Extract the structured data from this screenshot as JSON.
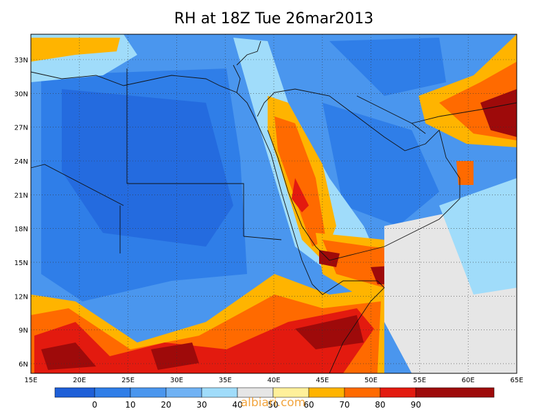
{
  "title": "RH at 18Z Tue 26mar2013",
  "lon_labels": [
    "15E",
    "20E",
    "25E",
    "30E",
    "35E",
    "40E",
    "45E",
    "50E",
    "55E",
    "60E",
    "65E"
  ],
  "lat_labels": [
    "33N",
    "30N",
    "27N",
    "24N",
    "21N",
    "18N",
    "15N",
    "12N",
    "9N",
    "6N"
  ],
  "colorbar": {
    "labels": [
      "0",
      "10",
      "20",
      "30",
      "40",
      "50",
      "60",
      "70",
      "80",
      "90"
    ],
    "colors": [
      "#1e5fd8",
      "#2f7ee8",
      "#4a96ee",
      "#70b2f4",
      "#a0dcfa",
      "#e6e6e6",
      "#fff09a",
      "#ffb400",
      "#ff6a00",
      "#e31a0f",
      "#9e0a0a"
    ]
  },
  "watermark": "albiari.com"
}
